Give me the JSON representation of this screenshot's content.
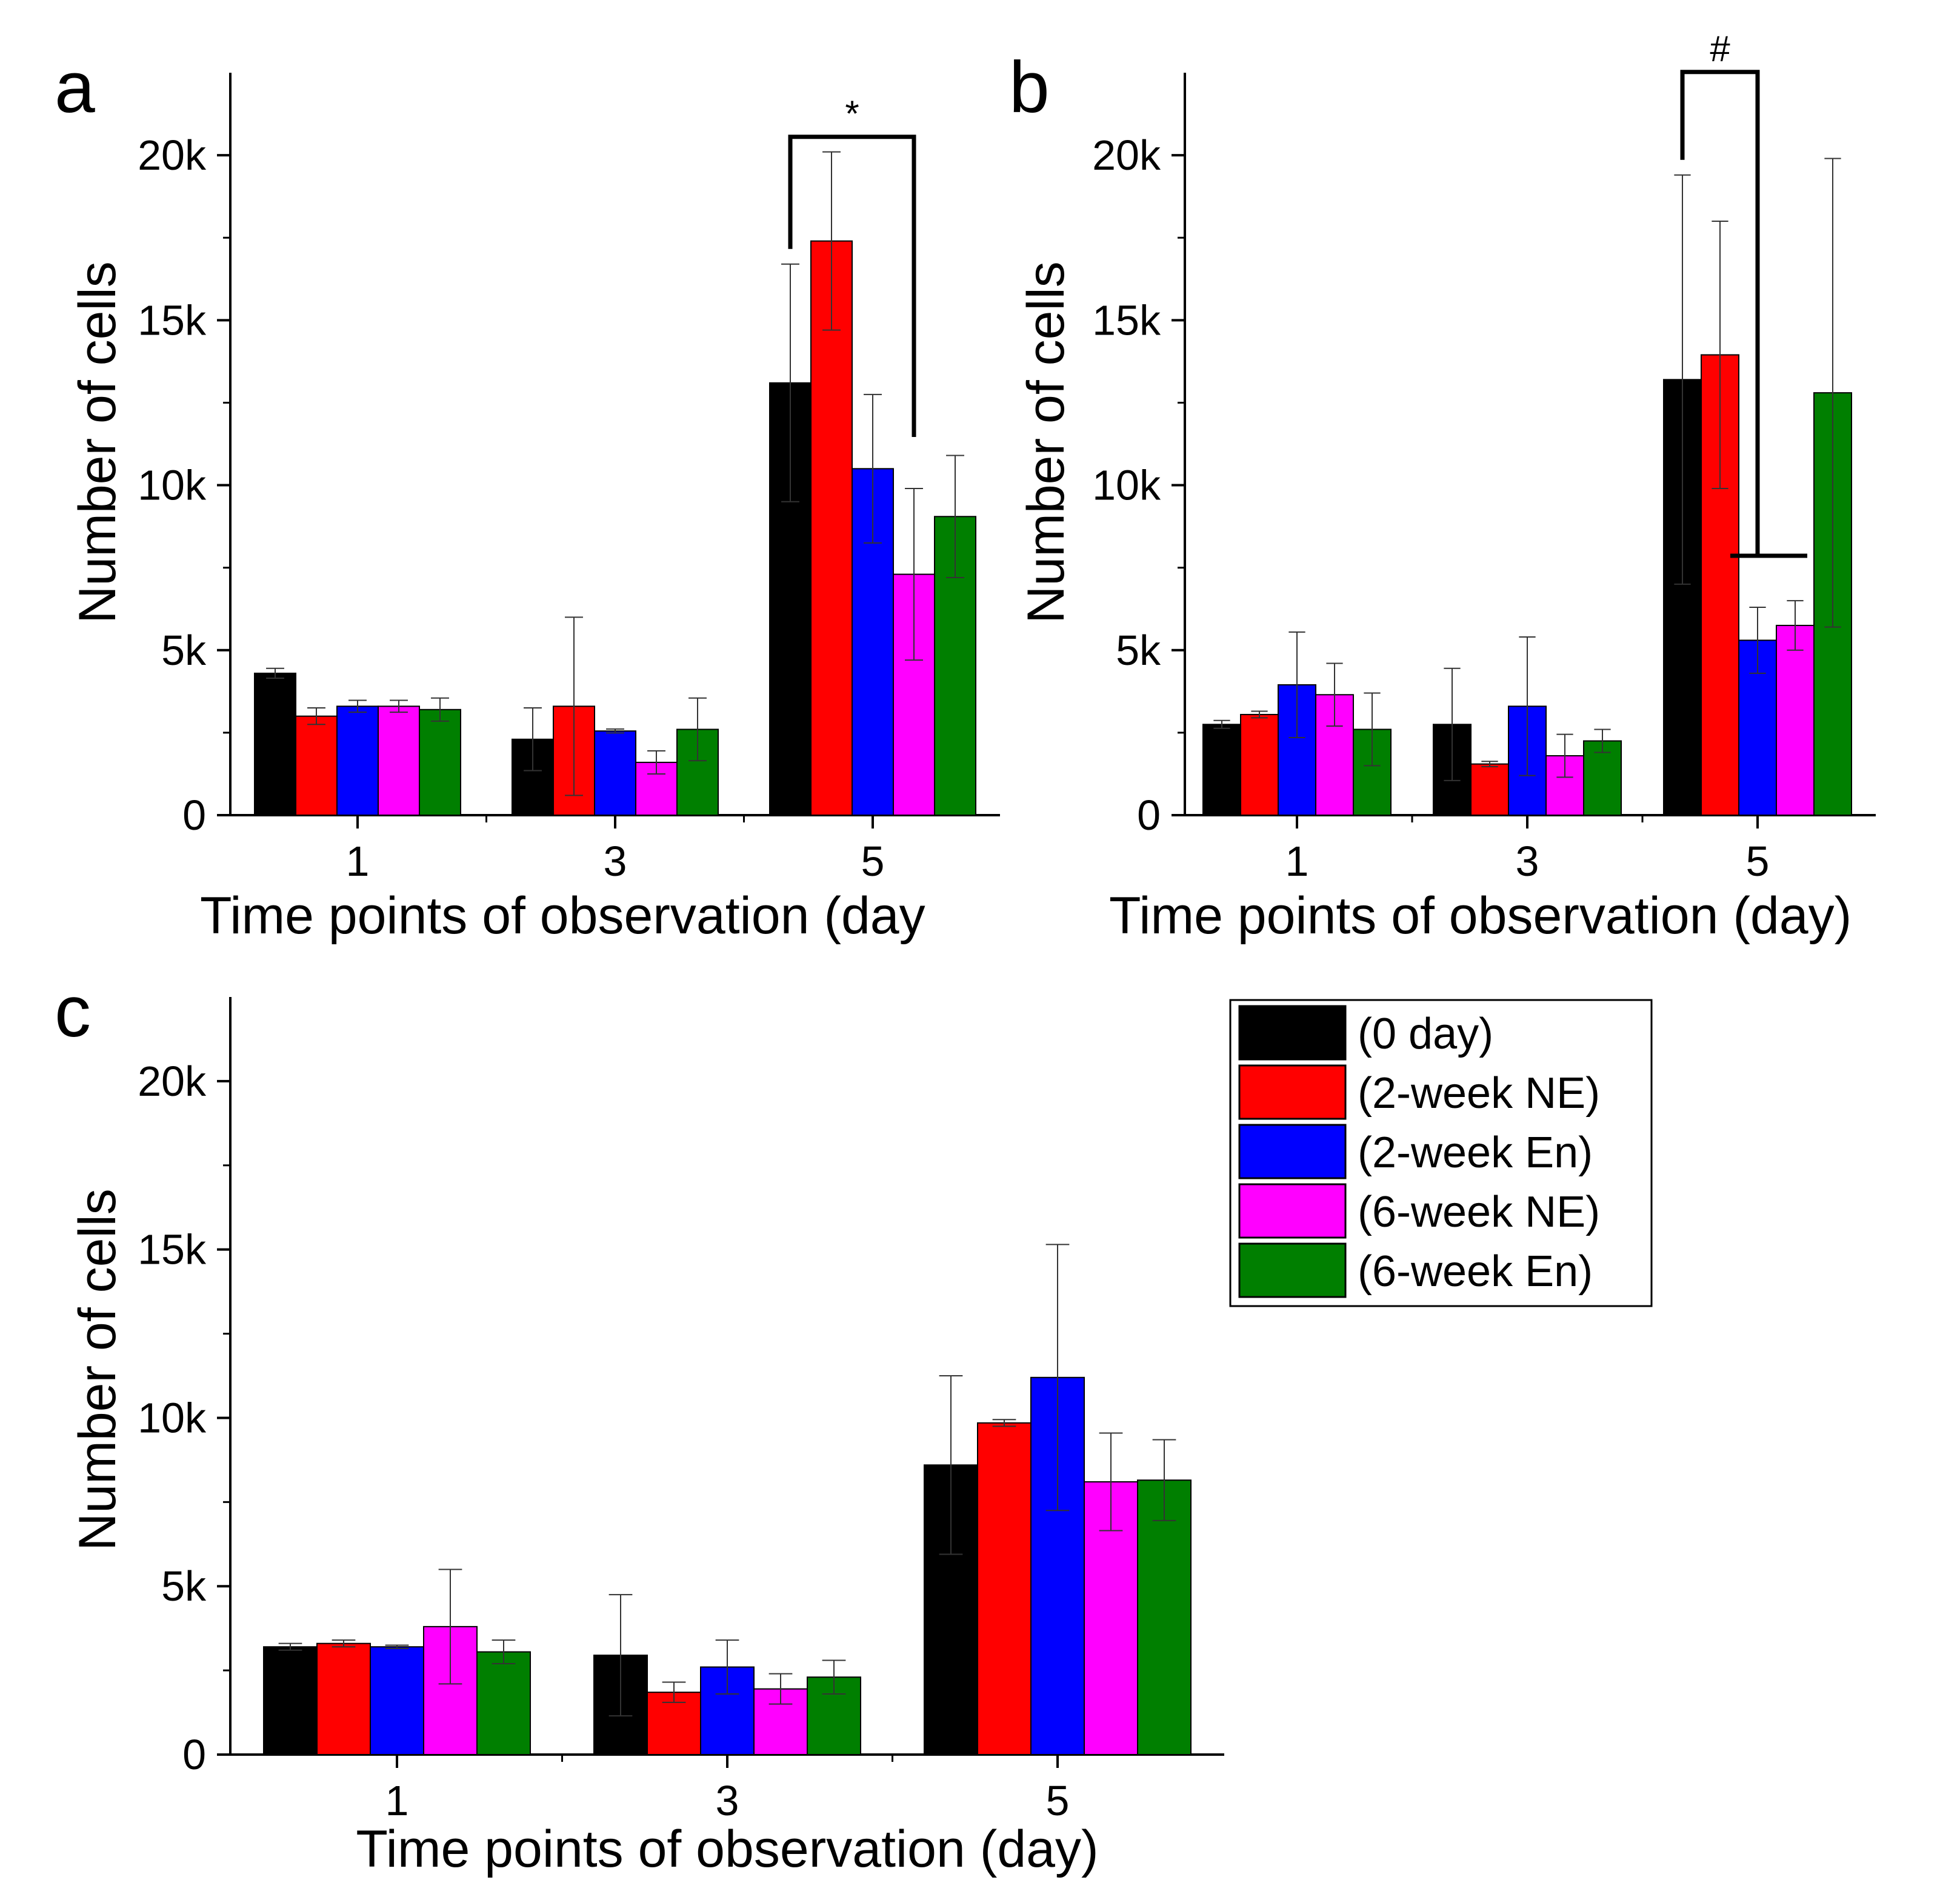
{
  "chart_data": [
    {
      "panel": "a",
      "type": "bar",
      "xlabel": "Time points of observation (day",
      "ylabel": "Number of cells",
      "ylim": [
        0,
        22500
      ],
      "yticks": [
        0,
        5000,
        10000,
        15000,
        20000
      ],
      "yticklabels": [
        "0",
        "5k",
        "10k",
        "15k",
        "20k"
      ],
      "categories": [
        "1",
        "3",
        "5"
      ],
      "series": [
        {
          "name": "(0 day)",
          "values": [
            4300,
            2300,
            13100
          ],
          "errors": [
            150,
            950,
            3600
          ]
        },
        {
          "name": "(2-week NE)",
          "values": [
            3000,
            3300,
            17400
          ],
          "errors": [
            250,
            2700,
            2700
          ]
        },
        {
          "name": "(2-week En)",
          "values": [
            3300,
            2550,
            10500
          ],
          "errors": [
            180,
            60,
            2250
          ]
        },
        {
          "name": "(6-week NE)",
          "values": [
            3300,
            1600,
            7300
          ],
          "errors": [
            180,
            350,
            2600
          ]
        },
        {
          "name": "(6-week En)",
          "values": [
            3200,
            2600,
            9050
          ],
          "errors": [
            350,
            950,
            1850
          ]
        }
      ],
      "annotation": {
        "symbol": "*",
        "from_series": 0,
        "to_series": 3,
        "category": 2
      }
    },
    {
      "panel": "b",
      "type": "bar",
      "xlabel": "Time points of observation (day)",
      "ylabel": "Number of cells",
      "ylim": [
        0,
        22500
      ],
      "yticks": [
        0,
        5000,
        10000,
        15000,
        20000
      ],
      "yticklabels": [
        "0",
        "5k",
        "10k",
        "15k",
        "20k"
      ],
      "categories": [
        "1",
        "3",
        "5"
      ],
      "series": [
        {
          "name": "(0 day)",
          "values": [
            2750,
            2750,
            13200
          ],
          "errors": [
            120,
            1700,
            6200
          ]
        },
        {
          "name": "(2-week NE)",
          "values": [
            3050,
            1550,
            13950
          ],
          "errors": [
            100,
            80,
            4050
          ]
        },
        {
          "name": "(2-week En)",
          "values": [
            3950,
            3300,
            5300
          ],
          "errors": [
            1600,
            2100,
            1000
          ]
        },
        {
          "name": "(6-week NE)",
          "values": [
            3650,
            1800,
            5750
          ],
          "errors": [
            950,
            650,
            750
          ]
        },
        {
          "name": "(6-week En)",
          "values": [
            2600,
            2250,
            12800
          ],
          "errors": [
            1100,
            350,
            7100
          ]
        }
      ],
      "annotation": {
        "symbol": "#",
        "from_series": 0,
        "to_series": 2,
        "to_series_end": 3,
        "category": 2
      }
    },
    {
      "panel": "c",
      "type": "bar",
      "xlabel": "Time points of observation (day)",
      "ylabel": "Number of cells",
      "ylim": [
        0,
        22500
      ],
      "yticks": [
        0,
        5000,
        10000,
        15000,
        20000
      ],
      "yticklabels": [
        "0",
        "5k",
        "10k",
        "15k",
        "20k"
      ],
      "categories": [
        "1",
        "3",
        "5"
      ],
      "series": [
        {
          "name": "(0 day)",
          "values": [
            3200,
            2950,
            8600
          ],
          "errors": [
            100,
            1800,
            2650
          ]
        },
        {
          "name": "(2-week NE)",
          "values": [
            3300,
            1850,
            9850
          ],
          "errors": [
            100,
            300,
            100
          ]
        },
        {
          "name": "(2-week En)",
          "values": [
            3200,
            2600,
            11200
          ],
          "errors": [
            50,
            800,
            3950
          ]
        },
        {
          "name": "(6-week NE)",
          "values": [
            3800,
            1950,
            8100
          ],
          "errors": [
            1700,
            450,
            1450
          ]
        },
        {
          "name": "(6-week En)",
          "values": [
            3050,
            2300,
            8150
          ],
          "errors": [
            350,
            500,
            1200
          ]
        }
      ]
    }
  ],
  "legend": {
    "entries": [
      "(0 day)",
      "(2-week NE)",
      "(2-week En)",
      "(6-week NE)",
      "(6-week En)"
    ],
    "colors": [
      "#000000",
      "#ff0000",
      "#0000ff",
      "#ff00ff",
      "#007f00"
    ]
  }
}
